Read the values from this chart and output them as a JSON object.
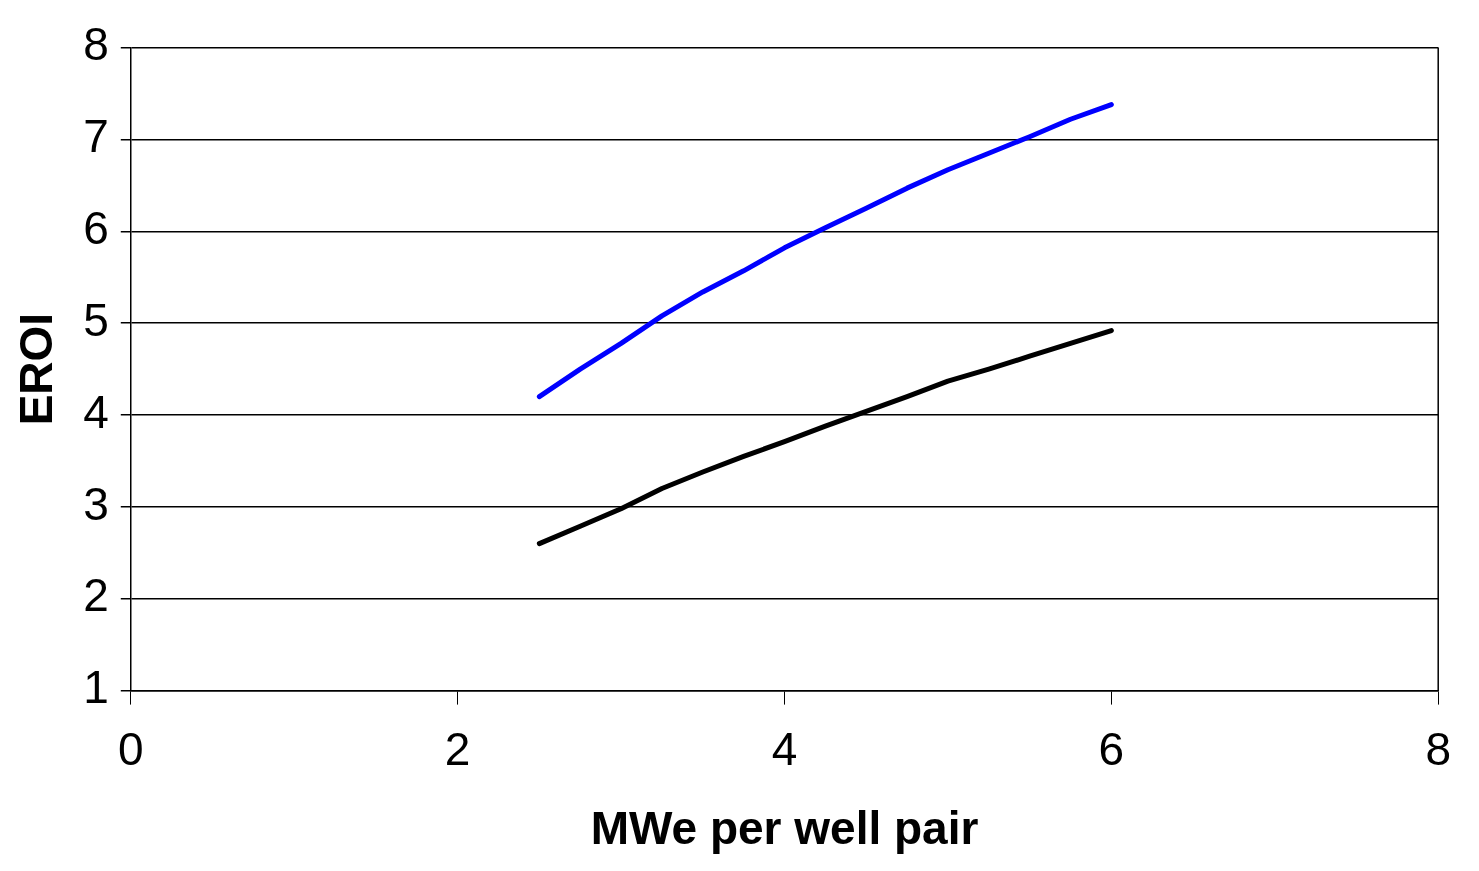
{
  "chart_data": {
    "type": "line",
    "xlabel": "MWe per well pair",
    "ylabel": "EROI",
    "xlim": [
      0,
      8
    ],
    "xticks": [
      0,
      2,
      4,
      6,
      8
    ],
    "ylim": [
      1,
      8
    ],
    "yticks": [
      1,
      2,
      3,
      4,
      5,
      6,
      7,
      8
    ],
    "grid": "y",
    "marker": "none",
    "line_style": "solid",
    "series": [
      {
        "color": "#0000ff",
        "x": [
          2.5,
          2.75,
          3.0,
          3.25,
          3.5,
          3.75,
          4.0,
          4.25,
          4.5,
          4.75,
          5.0,
          5.25,
          5.5,
          5.75,
          6.0
        ],
        "values": [
          4.2,
          4.5,
          4.78,
          5.08,
          5.34,
          5.57,
          5.82,
          6.04,
          6.25,
          6.47,
          6.67,
          6.85,
          7.03,
          7.22,
          7.38
        ]
      },
      {
        "color": "#000000",
        "x": [
          2.5,
          2.75,
          3.0,
          3.25,
          3.5,
          3.75,
          4.0,
          4.25,
          4.5,
          4.75,
          5.0,
          5.25,
          5.5,
          5.75,
          6.0
        ],
        "values": [
          2.6,
          2.79,
          2.98,
          3.2,
          3.38,
          3.55,
          3.71,
          3.88,
          4.04,
          4.2,
          4.37,
          4.5,
          4.64,
          4.78,
          4.92
        ]
      }
    ]
  }
}
